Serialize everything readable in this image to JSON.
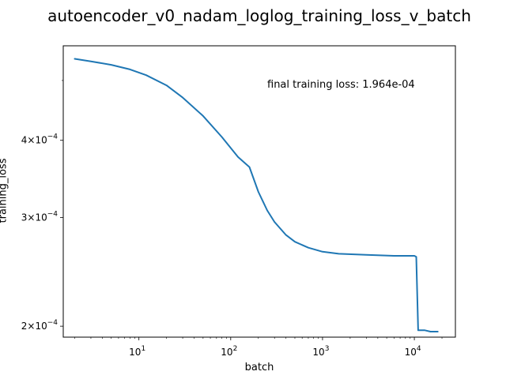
{
  "chart_data": {
    "type": "line",
    "title": "autoencoder_v0_nadam_loglog_training_loss_v_batch",
    "xlabel": "batch",
    "ylabel": "training_loss",
    "xscale": "log",
    "yscale": "log",
    "xlim": [
      1.5,
      28000
    ],
    "ylim": [
      0.000192,
      0.000569
    ],
    "xticks": [
      {
        "value": 10,
        "base": "10",
        "exp": "1"
      },
      {
        "value": 100,
        "base": "10",
        "exp": "2"
      },
      {
        "value": 1000,
        "base": "10",
        "exp": "3"
      },
      {
        "value": 10000,
        "base": "10",
        "exp": "4"
      }
    ],
    "yticks": [
      {
        "value": 0.0002,
        "mant": "2",
        "exp": "−4"
      },
      {
        "value": 0.0003,
        "mant": "3",
        "exp": "−4"
      },
      {
        "value": 0.0004,
        "mant": "4",
        "exp": "−4"
      }
    ],
    "line_color": "#1f77b4",
    "annotation": "final training loss: 1.964e-04",
    "series": [
      {
        "x": [
          2,
          3,
          5,
          8,
          12,
          20,
          30,
          50,
          80,
          120,
          160,
          200,
          250,
          300,
          400,
          500,
          700,
          1000,
          1500,
          3000,
          6000,
          10000,
          10500,
          11000,
          13000,
          15000,
          18000
        ],
        "y": [
          0.000542,
          0.000537,
          0.00053,
          0.000521,
          0.00051,
          0.000491,
          0.000469,
          0.000438,
          0.000405,
          0.000376,
          0.000362,
          0.00033,
          0.000308,
          0.000295,
          0.000281,
          0.000274,
          0.000268,
          0.000264,
          0.000262,
          0.000261,
          0.00026,
          0.00026,
          0.000259,
          0.000197,
          0.000197,
          0.000196,
          0.000196
        ]
      }
    ]
  }
}
